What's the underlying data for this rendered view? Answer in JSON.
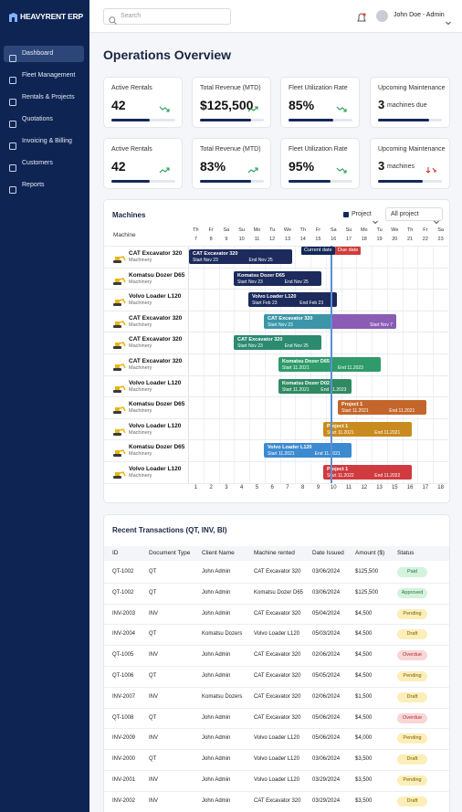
{
  "sidebar": {
    "logo": "HEAVYRENT ERP",
    "nav": [
      "Dashboard",
      "Fleet Management",
      "Rentals & Projects",
      "Quotations",
      "Invoicing & Billing",
      "Customers",
      "Reports"
    ]
  },
  "topbar": {
    "search_placeholder": "Search",
    "user": "John Doe - Admin"
  },
  "page_title": "Operations Overview",
  "kpis": [
    {
      "label": "Active Rentals",
      "value": 42
    },
    {
      "label": "Total Revenue (MTD)",
      "value": "$125,500"
    },
    {
      "label": "Fleet Utilization Rate",
      "value": "85%"
    },
    {
      "label": "Upcoming Maintenance",
      "value": 3,
      "note": "machines due"
    },
    {
      "label": "Active Rentals",
      "value": 42
    },
    {
      "label": "Total Revenue (MTD)",
      "value": "83%"
    },
    {
      "label": "Fleet Utilization Rate",
      "value": "95%"
    },
    {
      "label": "Upcoming Maintenance",
      "value": 3,
      "note": "machines"
    }
  ],
  "machines": {
    "title": "Machines",
    "legend": "Project",
    "filter": "All project",
    "machine_header": "Machine",
    "weekdays": [
      "Th",
      "Fr",
      "Sa",
      "Su",
      "Mo",
      "Tu",
      "We",
      "Th",
      "Fr",
      "Sa",
      "Su",
      "Mo",
      "Tu",
      "We",
      "Th",
      "Fr",
      "Sa"
    ],
    "dates": [
      "7",
      "8",
      "9",
      "10",
      "11",
      "12",
      "13",
      "14",
      "15",
      "16",
      "17",
      "18",
      "19",
      "20",
      "21",
      "22",
      "23"
    ],
    "day_numbers": [
      "1",
      "2",
      "3",
      "4",
      "5",
      "6",
      "7",
      "8",
      "9",
      "10",
      "11",
      "12",
      "13",
      "15",
      "16",
      "17",
      "18"
    ],
    "current_date_label": "Current date",
    "due_date_label": "Due date",
    "rows": [
      {
        "name": "CAT Excavator 320",
        "type": "Machinery",
        "bar": {
          "title": "CAT Excavator 320",
          "start": "Start Nov 23",
          "end": "End Nov 25"
        }
      },
      {
        "name": "Komatsu Dozer D65",
        "type": "Machinery",
        "bar": {
          "title": "Komatsu Dozer D65",
          "start": "Start Nov 23",
          "end": "End Nov 25"
        }
      },
      {
        "name": "Volvo Loader L120",
        "type": "Machinery",
        "bar": {
          "title": "Volvo Loader L120",
          "start": "Start Feb 23",
          "end": "End Feb 23"
        }
      },
      {
        "name": "CAT Excavator 320",
        "type": "Machinery",
        "bar": {
          "title": "CAT Excavator 320",
          "start": "Start Nov 23",
          "end": "Start Nov 7"
        }
      },
      {
        "name": "CAT Excavator 320",
        "type": "Machinery",
        "bar": {
          "title": "CAT Excavator 320",
          "start": "Start Nov 23",
          "end": "End Nov 25"
        }
      },
      {
        "name": "CAT Excavator 320",
        "type": "Machinery",
        "bar": {
          "title": "Komatsu Dozer D65",
          "start": "Start 11.2021",
          "end": "End 11.2023"
        }
      },
      {
        "name": "Volvo Loader L120",
        "type": "Machinery",
        "bar": {
          "title": "Komatsu Dozer D02",
          "start": "Start 11.2021",
          "end": "End 11.2023"
        }
      },
      {
        "name": "Komatsu Dozer D65",
        "type": "Machinery",
        "bar": {
          "title": "Project 1",
          "start": "Start 11.2021",
          "end": "End 11.2021"
        }
      },
      {
        "name": "Volvo Loader L120",
        "type": "Machinery",
        "bar": {
          "title": "Project 1",
          "start": "Start 11.2021",
          "end": "End 11.2021"
        }
      },
      {
        "name": "Komatsu Dozer D65",
        "type": "Machinery",
        "bar": {
          "title": "Volvo Loader L120",
          "start": "Start 11.2021",
          "end": "End 11.2021"
        }
      },
      {
        "name": "Volvo Loader L120",
        "type": "Machinery",
        "bar": {
          "title": "Project 1",
          "start": "Start 11.2022",
          "end": "End 11.2022"
        }
      }
    ]
  },
  "transactions": {
    "title": "Recent Transactions (QT, INV, BI)",
    "columns": [
      "ID",
      "Document Type",
      "Client Name",
      "Machine rented",
      "Date Issued",
      "Amount ($)",
      "Status"
    ],
    "rows": [
      [
        "QT-1002",
        "QT",
        "John Admin",
        "CAT Excavator 320",
        "03/06/2024",
        "$125,500",
        "Paid"
      ],
      [
        "QT-1002",
        "QT",
        "John Admin",
        "Komatsu Dozer D65",
        "03/06/2024",
        "$125,500",
        "Approved"
      ],
      [
        "INV-2003",
        "INV",
        "John Admin",
        "CAT Excavator 320",
        "05/04/2024",
        "$4,500",
        "Pending"
      ],
      [
        "INV-2004",
        "QT",
        "Komatsu Dozers",
        "Volvo Loader L120",
        "05/03/2024",
        "$4,500",
        "Draft"
      ],
      [
        "QT-1005",
        "INV",
        "John Admin",
        "CAT Excavator 320",
        "02/06/2024",
        "$4,500",
        "Overdue"
      ],
      [
        "QT-1006",
        "QT",
        "John Admin",
        "CAT Excavator 320",
        "05/05/2024",
        "$4,500",
        "Pending"
      ],
      [
        "INV-2007",
        "INV",
        "Komatsu Dozers",
        "CAT Excavator 320",
        "02/06/2024",
        "$1,500",
        "Draft"
      ],
      [
        "QT-1008",
        "QT",
        "John Admin",
        "CAT Excavator 320",
        "05/06/2024",
        "$4,500",
        "Overdue"
      ],
      [
        "INV-2009",
        "INV",
        "John Admin",
        "Volvo Loader L120",
        "05/06/2024",
        "$4,000",
        "Pending"
      ],
      [
        "INV-2000",
        "QT",
        "John Admin",
        "Volvo Loader L120",
        "03/06/2024",
        "$3,500",
        "Draft"
      ],
      [
        "INV-2001",
        "INV",
        "John Admin",
        "Volvo Loader L120",
        "03/29/2024",
        "$3,500",
        "Pending"
      ],
      [
        "INV-2002",
        "INV",
        "John Admin",
        "CAT Excavator 320",
        "03/29/2024",
        "$3,500",
        "Draft"
      ]
    ]
  }
}
